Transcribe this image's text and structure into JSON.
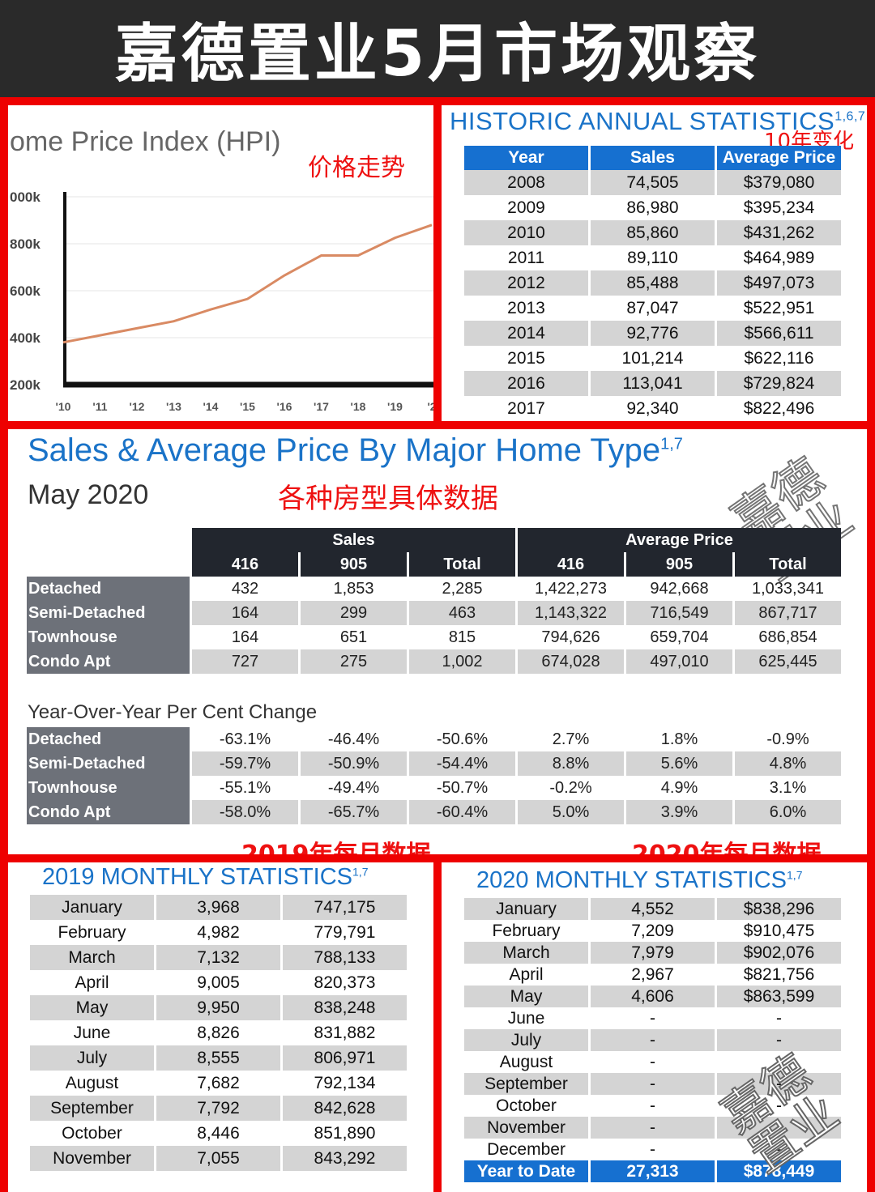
{
  "page_title": "嘉德置业5月市场观察",
  "hpi": {
    "title": "ome Price Index (HPI)",
    "note": "价格走势",
    "chart_data": {
      "type": "line",
      "x": [
        "'10",
        "'11",
        "'12",
        "'13",
        "'14",
        "'15",
        "'16",
        "'17",
        "'18",
        "'19",
        "'2"
      ],
      "y_ticks": [
        "200k",
        "400k",
        "600k",
        "800k",
        "000k"
      ],
      "ylim": [
        200000,
        1000000
      ],
      "series": [
        {
          "values": [
            380000,
            410000,
            440000,
            470000,
            520000,
            565000,
            665000,
            750000,
            750000,
            825000,
            880000
          ]
        }
      ],
      "line_color": "#d98a63"
    }
  },
  "annual": {
    "title": "HISTORIC ANNUAL STATISTICS",
    "title_sup": "1,6,7",
    "note": "10年变化",
    "headers": [
      "Year",
      "Sales",
      "Average Price"
    ],
    "rows": [
      [
        "2008",
        "74,505",
        "$379,080"
      ],
      [
        "2009",
        "86,980",
        "$395,234"
      ],
      [
        "2010",
        "85,860",
        "$431,262"
      ],
      [
        "2011",
        "89,110",
        "$464,989"
      ],
      [
        "2012",
        "85,488",
        "$497,073"
      ],
      [
        "2013",
        "87,047",
        "$522,951"
      ],
      [
        "2014",
        "92,776",
        "$566,611"
      ],
      [
        "2015",
        "101,214",
        "$622,116"
      ],
      [
        "2016",
        "113,041",
        "$729,824"
      ],
      [
        "2017",
        "92,340",
        "$822,496"
      ]
    ]
  },
  "home_type": {
    "title": "Sales & Average Price By Major Home Type",
    "title_sup": "1,7",
    "subtitle": "May 2020",
    "note": "各种房型具体数据",
    "watermark": "嘉德置业",
    "group_headers": [
      "Sales",
      "Average Price"
    ],
    "sub_headers": [
      "416",
      "905",
      "Total",
      "416",
      "905",
      "Total"
    ],
    "rows": [
      {
        "label": "Detached",
        "values": [
          "432",
          "1,853",
          "2,285",
          "1,422,273",
          "942,668",
          "1,033,341"
        ]
      },
      {
        "label": "Semi-Detached",
        "values": [
          "164",
          "299",
          "463",
          "1,143,322",
          "716,549",
          "867,717"
        ]
      },
      {
        "label": "Townhouse",
        "values": [
          "164",
          "651",
          "815",
          "794,626",
          "659,704",
          "686,854"
        ]
      },
      {
        "label": "Condo Apt",
        "values": [
          "727",
          "275",
          "1,002",
          "674,028",
          "497,010",
          "625,445"
        ]
      }
    ],
    "yoy_title": "Year-Over-Year Per Cent Change",
    "yoy_rows": [
      {
        "label": "Detached",
        "values": [
          "-63.1%",
          "-46.4%",
          "-50.6%",
          "2.7%",
          "1.8%",
          "-0.9%"
        ]
      },
      {
        "label": "Semi-Detached",
        "values": [
          "-59.7%",
          "-50.9%",
          "-54.4%",
          "8.8%",
          "5.6%",
          "4.8%"
        ]
      },
      {
        "label": "Townhouse",
        "values": [
          "-55.1%",
          "-49.4%",
          "-50.7%",
          "-0.2%",
          "4.9%",
          "3.1%"
        ]
      },
      {
        "label": "Condo Apt",
        "values": [
          "-58.0%",
          "-65.7%",
          "-60.4%",
          "5.0%",
          "3.9%",
          "6.0%"
        ]
      }
    ],
    "note_2019": "2019年每月数据",
    "note_2020": "2020年每月数据"
  },
  "monthly_2019": {
    "title": "2019 MONTHLY STATISTICS",
    "title_sup": "1,7",
    "rows": [
      [
        "January",
        "3,968",
        "747,175"
      ],
      [
        "February",
        "4,982",
        "779,791"
      ],
      [
        "March",
        "7,132",
        "788,133"
      ],
      [
        "April",
        "9,005",
        "820,373"
      ],
      [
        "May",
        "9,950",
        "838,248"
      ],
      [
        "June",
        "8,826",
        "831,882"
      ],
      [
        "July",
        "8,555",
        "806,971"
      ],
      [
        "August",
        "7,682",
        "792,134"
      ],
      [
        "September",
        "7,792",
        "842,628"
      ],
      [
        "October",
        "8,446",
        "851,890"
      ],
      [
        "November",
        "7,055",
        "843,292"
      ]
    ]
  },
  "monthly_2020": {
    "title": "2020 MONTHLY STATISTICS",
    "title_sup": "1,7",
    "watermark": "嘉德置业",
    "rows": [
      [
        "January",
        "4,552",
        "$838,296"
      ],
      [
        "February",
        "7,209",
        "$910,475"
      ],
      [
        "March",
        "7,979",
        "$902,076"
      ],
      [
        "April",
        "2,967",
        "$821,756"
      ],
      [
        "May",
        "4,606",
        "$863,599"
      ],
      [
        "June",
        "-",
        "-"
      ],
      [
        "July",
        "-",
        "-"
      ],
      [
        "August",
        "-",
        "-"
      ],
      [
        "September",
        "-",
        "-"
      ],
      [
        "October",
        "-",
        "-"
      ],
      [
        "November",
        "-",
        "-"
      ],
      [
        "December",
        "-",
        "-"
      ]
    ],
    "ytd": [
      "Year to Date",
      "27,313",
      "$878,449"
    ]
  }
}
